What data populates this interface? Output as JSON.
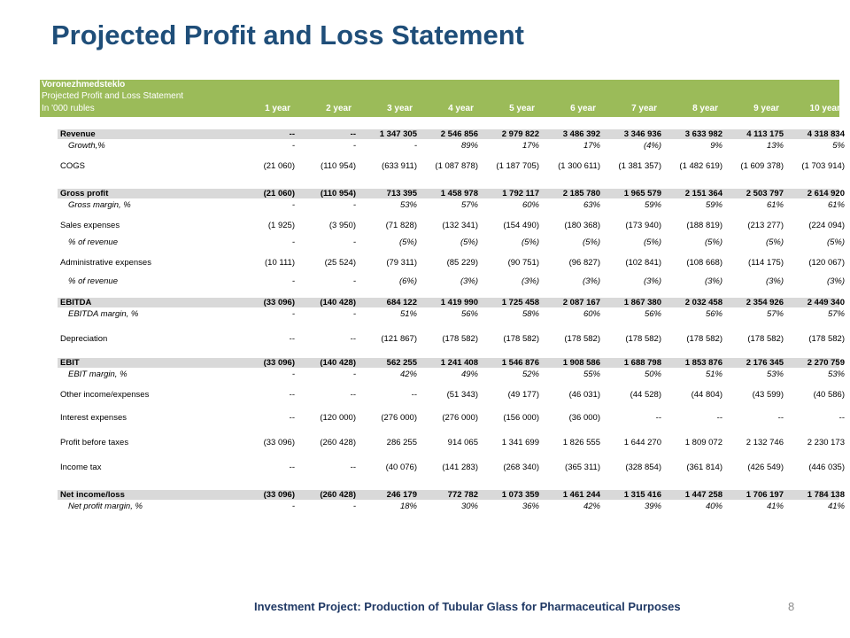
{
  "title": "Projected Profit and Loss Statement",
  "banner": {
    "company": "Voronezhmedsteklo",
    "subtitle": "Projected Profit and Loss Statement",
    "units": "In '000 rubles",
    "years": [
      "1 year",
      "2 year",
      "3 year",
      "4 year",
      "5 year",
      "6 year",
      "7 year",
      "8 year",
      "9 year",
      "10 year"
    ]
  },
  "rows": [
    {
      "label": "Revenue",
      "style": "grey bold",
      "values": [
        "--",
        "--",
        "1 347 305",
        "2 546 856",
        "2 979 822",
        "3 486 392",
        "3 346 936",
        "3 633 982",
        "4 113 175",
        "4 318 834"
      ]
    },
    {
      "label": "Growth,%",
      "style": "ital",
      "values": [
        "-",
        "-",
        "-",
        "89%",
        "17%",
        "17%",
        "(4%)",
        "9%",
        "13%",
        "5%"
      ]
    },
    {
      "label": "COGS",
      "style": "",
      "values": [
        "(21 060)",
        "(110 954)",
        "(633 911)",
        "(1 087 878)",
        "(1 187 705)",
        "(1 300 611)",
        "(1 381 357)",
        "(1 482 619)",
        "(1 609 378)",
        "(1 703 914)"
      ]
    },
    {
      "label": "Gross profit",
      "style": "grey bold",
      "values": [
        "(21 060)",
        "(110 954)",
        "713 395",
        "1 458 978",
        "1 792 117",
        "2 185 780",
        "1 965 579",
        "2 151 364",
        "2 503 797",
        "2 614 920"
      ]
    },
    {
      "label": "Gross margin, %",
      "style": "ital",
      "values": [
        "-",
        "-",
        "53%",
        "57%",
        "60%",
        "63%",
        "59%",
        "59%",
        "61%",
        "61%"
      ]
    },
    {
      "label": "Sales expenses",
      "style": "",
      "values": [
        "(1 925)",
        "(3 950)",
        "(71 828)",
        "(132 341)",
        "(154 490)",
        "(180 368)",
        "(173 940)",
        "(188 819)",
        "(213 277)",
        "(224 094)"
      ]
    },
    {
      "label": "% of revenue",
      "style": "ital",
      "values": [
        "-",
        "-",
        "(5%)",
        "(5%)",
        "(5%)",
        "(5%)",
        "(5%)",
        "(5%)",
        "(5%)",
        "(5%)"
      ]
    },
    {
      "label": "Administrative expenses",
      "style": "",
      "values": [
        "(10 111)",
        "(25 524)",
        "(79 311)",
        "(85 229)",
        "(90 751)",
        "(96 827)",
        "(102 841)",
        "(108 668)",
        "(114 175)",
        "(120 067)"
      ]
    },
    {
      "label": "% of revenue",
      "style": "ital",
      "values": [
        "-",
        "-",
        "(6%)",
        "(3%)",
        "(3%)",
        "(3%)",
        "(3%)",
        "(3%)",
        "(3%)",
        "(3%)"
      ]
    },
    {
      "label": "EBITDA",
      "style": "grey bold",
      "values": [
        "(33 096)",
        "(140 428)",
        "684 122",
        "1 419 990",
        "1 725 458",
        "2 087 167",
        "1 867 380",
        "2 032 458",
        "2 354 926",
        "2 449 340"
      ]
    },
    {
      "label": "EBITDA margin, %",
      "style": "ital",
      "values": [
        "-",
        "-",
        "51%",
        "56%",
        "58%",
        "60%",
        "56%",
        "56%",
        "57%",
        "57%"
      ]
    },
    {
      "label": "Depreciation",
      "style": "",
      "values": [
        "--",
        "--",
        "(121 867)",
        "(178 582)",
        "(178 582)",
        "(178 582)",
        "(178 582)",
        "(178 582)",
        "(178 582)",
        "(178 582)"
      ]
    },
    {
      "label": "EBIT",
      "style": "grey bold",
      "values": [
        "(33 096)",
        "(140 428)",
        "562 255",
        "1 241 408",
        "1 546 876",
        "1 908 586",
        "1 688 798",
        "1 853 876",
        "2 176 345",
        "2 270 759"
      ]
    },
    {
      "label": "EBIT margin, %",
      "style": "ital",
      "values": [
        "-",
        "-",
        "42%",
        "49%",
        "52%",
        "55%",
        "50%",
        "51%",
        "53%",
        "53%"
      ]
    },
    {
      "label": "Other income/expenses",
      "style": "",
      "values": [
        "--",
        "--",
        "--",
        "(51 343)",
        "(49 177)",
        "(46 031)",
        "(44 528)",
        "(44 804)",
        "(43 599)",
        "(40 586)"
      ]
    },
    {
      "label": "Interest expenses",
      "style": "",
      "values": [
        "--",
        "(120 000)",
        "(276 000)",
        "(276 000)",
        "(156 000)",
        "(36 000)",
        "--",
        "--",
        "--",
        "--"
      ]
    },
    {
      "label": "Profit before taxes",
      "style": "",
      "values": [
        "(33 096)",
        "(260 428)",
        "286 255",
        "914 065",
        "1 341 699",
        "1 826 555",
        "1 644 270",
        "1 809 072",
        "2 132 746",
        "2 230 173"
      ]
    },
    {
      "label": "Income tax",
      "style": "",
      "values": [
        "--",
        "--",
        "(40 076)",
        "(141 283)",
        "(268 340)",
        "(365 311)",
        "(328 854)",
        "(361 814)",
        "(426 549)",
        "(446 035)"
      ]
    },
    {
      "label": "Net income/loss",
      "style": "grey bold",
      "values": [
        "(33 096)",
        "(260 428)",
        "246 179",
        "772 782",
        "1 073 359",
        "1 461 244",
        "1 315 416",
        "1 447 258",
        "1 706 197",
        "1 784 138"
      ]
    },
    {
      "label": "Net profit margin, %",
      "style": "ital",
      "values": [
        "-",
        "-",
        "18%",
        "30%",
        "36%",
        "42%",
        "39%",
        "40%",
        "41%",
        "41%"
      ]
    }
  ],
  "footer": "Investment Project: Production of Tubular Glass for Pharmaceutical Purposes",
  "page_number": "8",
  "colors": {
    "title": "#1f4e79",
    "banner": "#9bbb59",
    "highlight_row": "#d9d9d9",
    "footer": "#1f3864"
  }
}
